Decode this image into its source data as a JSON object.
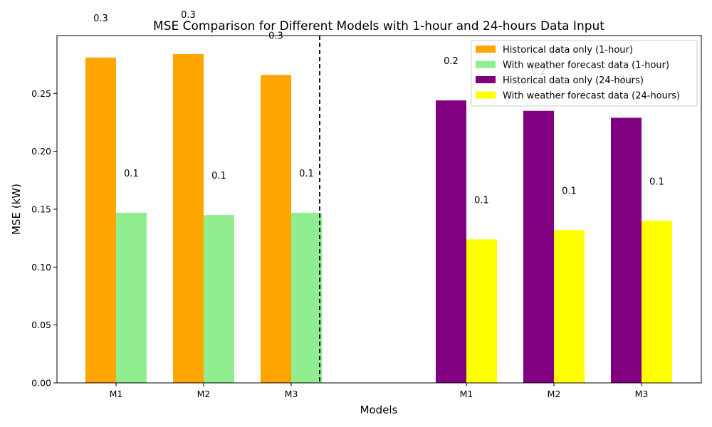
{
  "chart_data": {
    "type": "bar",
    "title": "MSE Comparison for Different Models with 1-hour and 24-hours Data Input",
    "xlabel": "Models",
    "ylabel": "MSE (kW)",
    "ylim": [
      0,
      0.3
    ],
    "yticks": [
      "0.00",
      "0.05",
      "0.10",
      "0.15",
      "0.20",
      "0.25"
    ],
    "grid": false,
    "legend_position": "top-right",
    "groups": [
      {
        "categories": [
          "M1",
          "M2",
          "M3"
        ],
        "series": [
          {
            "name": "Historical data only (1-hour)",
            "color": "#FFA500",
            "values": [
              0.281,
              0.284,
              0.266
            ],
            "labels": [
              "0.3",
              "0.3",
              "0.3"
            ]
          },
          {
            "name": "With weather forecast data (1-hour)",
            "color": "#90EE90",
            "values": [
              0.147,
              0.145,
              0.147
            ],
            "labels": [
              "0.1",
              "0.1",
              "0.1"
            ]
          }
        ]
      },
      {
        "categories": [
          "M1",
          "M2",
          "M3"
        ],
        "series": [
          {
            "name": "Historical data only (24-hours)",
            "color": "#800080",
            "values": [
              0.244,
              0.235,
              0.229
            ],
            "labels": [
              "0.2",
              "0.2",
              "0.2"
            ]
          },
          {
            "name": "With weather forecast data (24-hours)",
            "color": "#FFFF00",
            "values": [
              0.124,
              0.132,
              0.14
            ],
            "labels": [
              "0.1",
              "0.1",
              "0.1"
            ]
          }
        ]
      }
    ]
  }
}
